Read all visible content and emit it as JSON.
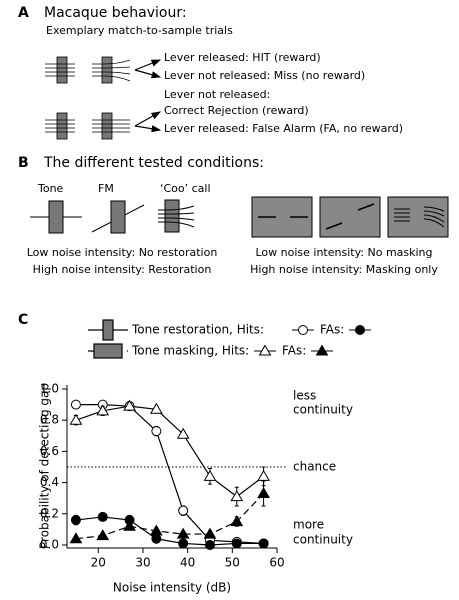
{
  "panel_a": {
    "label": "A",
    "title": "Macaque behaviour:",
    "subtitle": "Exemplary match-to-sample trials",
    "outcomes": [
      "Lever released: HIT (reward)",
      "Lever not released: Miss (no reward)",
      "Lever not released:",
      "Correct Rejection (reward)",
      "Lever released: False Alarm (FA, no reward)"
    ]
  },
  "panel_b": {
    "label": "B",
    "title": "The different tested conditions:",
    "stimuli": [
      "Tone",
      "FM",
      "‘Coo’ call"
    ],
    "left_notes": [
      "Low noise intensity: No restoration",
      "High noise intensity: Restoration"
    ],
    "right_notes": [
      "Low noise intensity: No masking",
      "High noise intensity: Masking only"
    ]
  },
  "chart_data": {
    "type": "line",
    "label": "C",
    "x_label": "Noise intensity (dB)",
    "y_label": "Probability of detecting gap",
    "x": [
      15,
      21,
      27,
      33,
      39,
      45,
      51,
      57
    ],
    "xlim": [
      13,
      60
    ],
    "xticks": [
      20,
      30,
      40,
      50,
      60
    ],
    "ylim": [
      0,
      1
    ],
    "yticks": [
      {
        "value": 0,
        "label": "0.0"
      },
      {
        "value": 0.2,
        "label": "0.2"
      },
      {
        "value": 0.4,
        "label": "0.4"
      },
      {
        "value": 0.6,
        "label": "0.6"
      },
      {
        "value": 0.8,
        "label": "0.8"
      },
      {
        "value": 1,
        "label": "1.0"
      }
    ],
    "chance_level": 0.5,
    "annotations": [
      "less",
      "continuity",
      "chance",
      "more",
      "continuity"
    ],
    "series": [
      {
        "name": "Tone restoration, Hits:",
        "color": "#000000",
        "marker": "circle",
        "filled": false,
        "dashed": false,
        "values": [
          0.9,
          0.9,
          0.89,
          0.73,
          0.22,
          0.03,
          0.02,
          0.01
        ],
        "errors": [
          0.02,
          0.02,
          0.02,
          0.03,
          0.03,
          0.01,
          0.01,
          0.01
        ]
      },
      {
        "name": "FAs:",
        "color": "#000000",
        "marker": "circle",
        "filled": true,
        "dashed": false,
        "values": [
          0.16,
          0.18,
          0.16,
          0.04,
          0.01,
          0.0,
          0.01,
          0.01
        ],
        "errors": [
          0.03,
          0.01,
          0.03,
          0.02,
          0.01,
          0.01,
          0.01,
          0.01
        ]
      },
      {
        "name": "Tone masking, Hits:",
        "color": "#000000",
        "marker": "triangle",
        "filled": false,
        "dashed": false,
        "values": [
          0.8,
          0.86,
          0.89,
          0.87,
          0.71,
          0.44,
          0.31,
          0.44
        ],
        "errors": [
          0.03,
          0.03,
          0.02,
          0.02,
          0.02,
          0.05,
          0.06,
          0.06
        ]
      },
      {
        "name": "FAs:",
        "color": "#000000",
        "marker": "triangle",
        "filled": true,
        "dashed": true,
        "values": [
          0.04,
          0.06,
          0.12,
          0.09,
          0.07,
          0.07,
          0.15,
          0.33
        ],
        "errors": [
          0.01,
          0.01,
          0.02,
          0.02,
          0.01,
          0.02,
          0.03,
          0.08
        ]
      }
    ]
  }
}
